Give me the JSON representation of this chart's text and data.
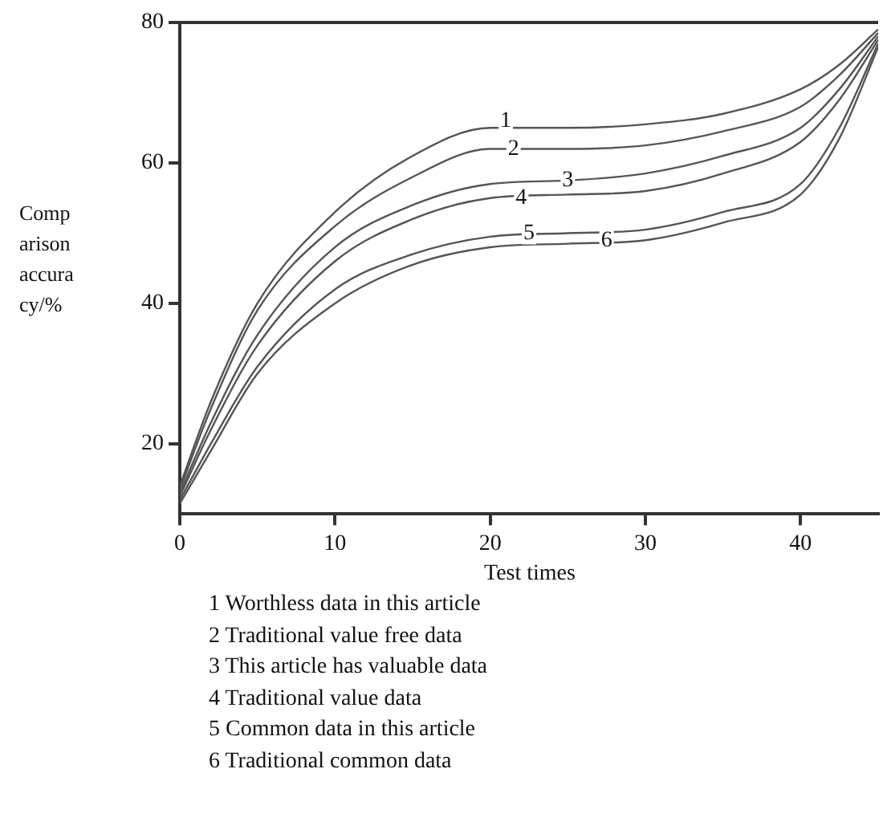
{
  "chart_data": {
    "type": "line",
    "xlabel": "Test times",
    "ylabel": "Comparison accuracy/%",
    "xlim": [
      0,
      45
    ],
    "ylim": [
      10,
      80
    ],
    "xticks": [
      0,
      10,
      20,
      30,
      40
    ],
    "yticks": [
      20,
      40,
      60,
      80
    ],
    "grid": false,
    "legend": false,
    "marker": "none",
    "line_style": "solid",
    "x": [
      0,
      2,
      5,
      10,
      15,
      20,
      25,
      30,
      35,
      40,
      42.5,
      45
    ],
    "series": [
      {
        "color": "#555555",
        "values": [
          14,
          26,
          40,
          53,
          61,
          65,
          65,
          65.5,
          67,
          70.5,
          74,
          79
        ]
      },
      {
        "color": "#555555",
        "values": [
          13.5,
          25,
          39,
          51,
          58,
          62,
          62,
          62.5,
          64.5,
          68,
          72.5,
          78.5
        ]
      },
      {
        "color": "#555555",
        "values": [
          13,
          23,
          35.5,
          48,
          54,
          57,
          57.5,
          58.5,
          61,
          65,
          70.5,
          78
        ]
      },
      {
        "color": "#555555",
        "values": [
          12.5,
          22,
          34,
          46,
          52,
          55,
          55.5,
          56,
          58.5,
          63,
          69,
          77.5
        ]
      },
      {
        "color": "#555555",
        "values": [
          12,
          20,
          31,
          42,
          47,
          49.5,
          50,
          50.5,
          53,
          57,
          65,
          77
        ]
      },
      {
        "color": "#555555",
        "values": [
          11.5,
          19,
          30,
          40,
          45.5,
          48,
          48.5,
          49,
          51.5,
          55.5,
          63.5,
          76.5
        ]
      }
    ],
    "annotations": [
      {
        "text": "1",
        "x": 21,
        "y": 66
      },
      {
        "text": "2",
        "x": 21.5,
        "y": 62
      },
      {
        "text": "3",
        "x": 25,
        "y": 57.5
      },
      {
        "text": "4",
        "x": 22,
        "y": 55
      },
      {
        "text": "5",
        "x": 22.5,
        "y": 50
      },
      {
        "text": "6",
        "x": 27.5,
        "y": 49
      },
      "1 Worthless data in this article",
      "2 Traditional value free data",
      "3 This article has valuable data",
      "4 Traditional value data",
      "5 Common data in this article",
      "6 Traditional common data"
    ]
  }
}
